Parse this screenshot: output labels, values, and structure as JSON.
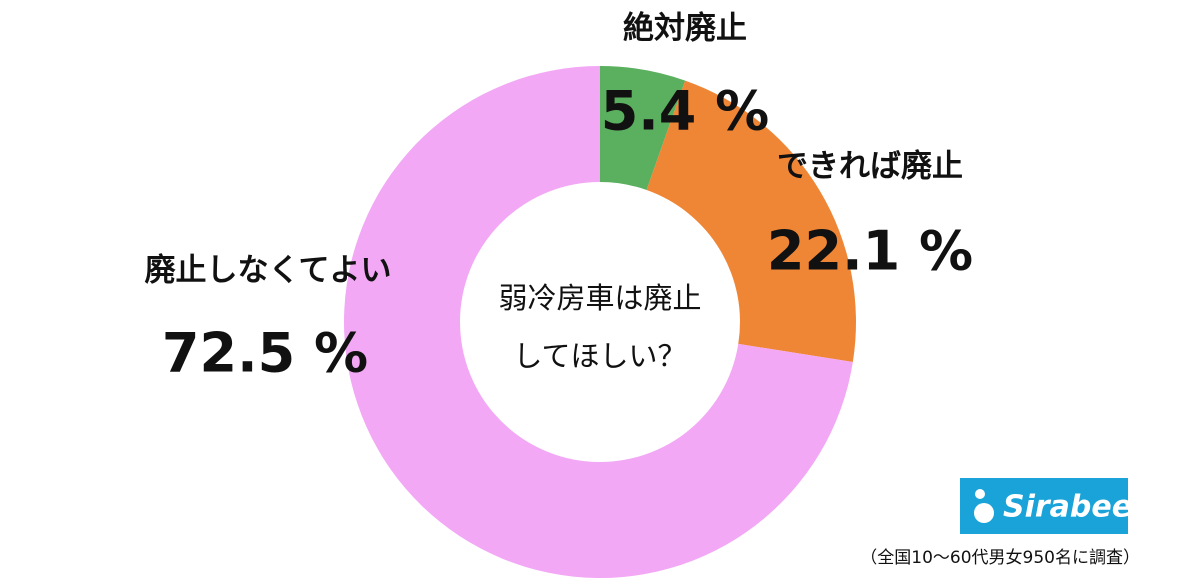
{
  "chart_data": {
    "type": "donut",
    "categories": [
      "絶対廃止",
      "できれば廃止",
      "廃止しなくてよい"
    ],
    "values": [
      5.4,
      22.1,
      72.5
    ],
    "value_labels": [
      "5.4 %",
      "22.1 %",
      "72.5 %"
    ],
    "colors": [
      "#5bb05f",
      "#ef8636",
      "#f2a8f5"
    ],
    "center_text": [
      "弱冷房車は廃止",
      "してほしい？"
    ]
  },
  "logo": "Sirabee",
  "footnote": "（全国10～60代男女950名に調査）"
}
